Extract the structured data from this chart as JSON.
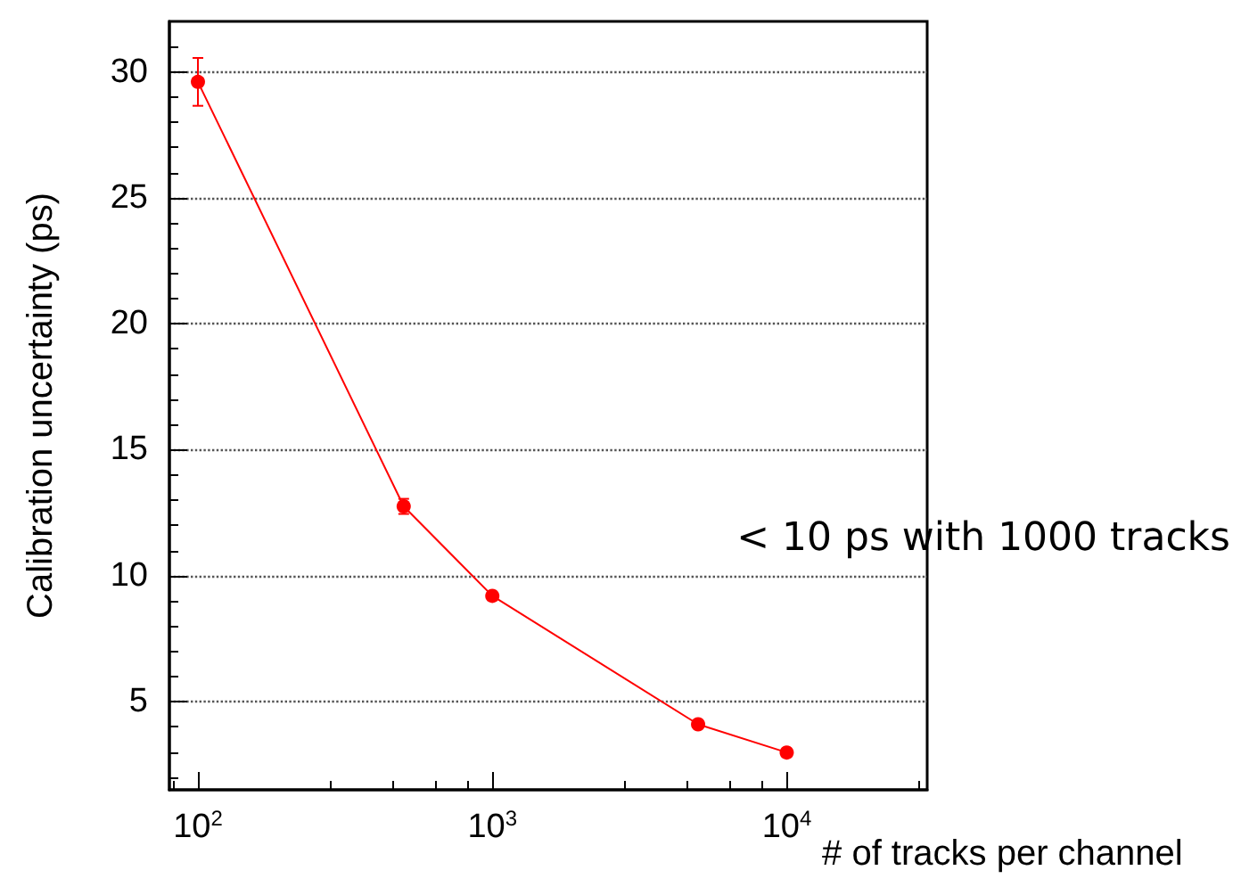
{
  "chart_data": {
    "type": "line",
    "xlabel": "# of tracks per channel",
    "ylabel": "Calibration uncertainty (ps)",
    "x": [
      100,
      500,
      1000,
      5000,
      10000
    ],
    "series": [
      {
        "color": "#ff0000",
        "values": [
          29.6,
          12.75,
          9.2,
          4.1,
          2.98
        ],
        "errors": [
          0.95,
          0.3,
          null,
          null,
          null
        ]
      }
    ],
    "log": "x",
    "xlim": [
      80,
      30000
    ],
    "xticks": [
      {
        "value": 100,
        "label": "10$^{2}$"
      },
      {
        "value": 1000,
        "label": "10$^{3}$"
      },
      {
        "value": 10000,
        "label": "10$^{4}$"
      }
    ],
    "ylim": [
      1.5,
      32
    ],
    "yticks": [
      5,
      10,
      15,
      20,
      25,
      30
    ],
    "grid": "y",
    "marker": "circle",
    "line_style": "solid",
    "annotations": [
      "< 10 ps with 1000 tracks"
    ]
  }
}
